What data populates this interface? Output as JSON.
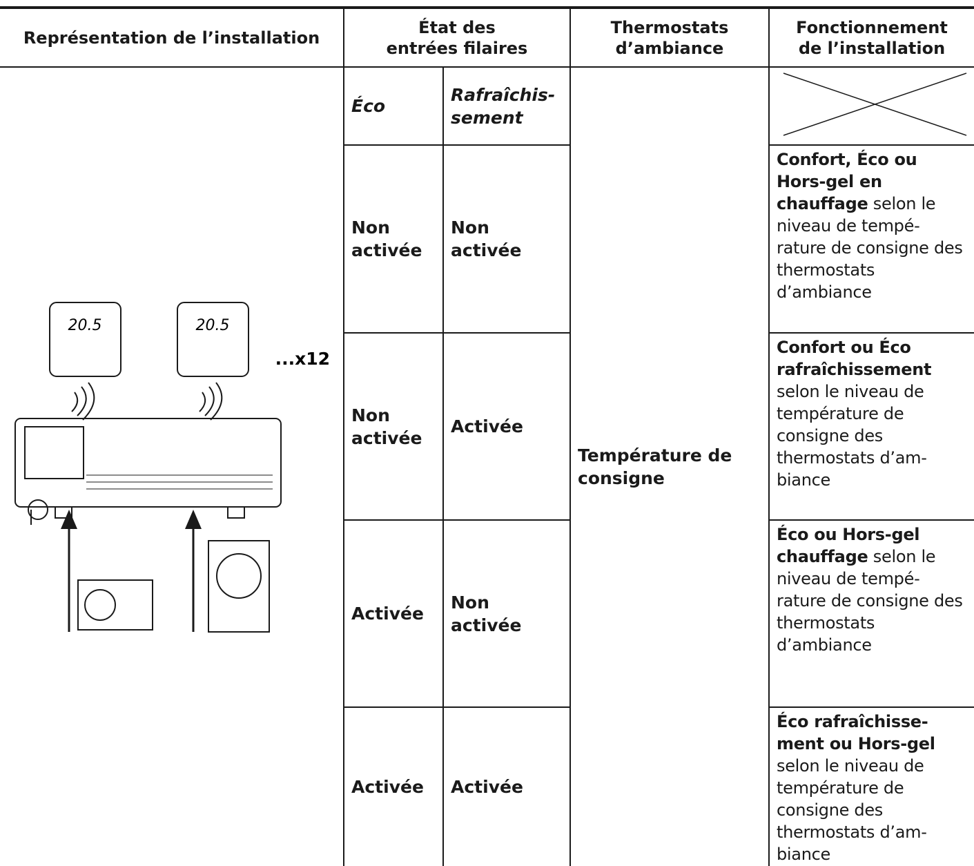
{
  "header": {
    "installation": "Représentation de l’installation",
    "inputs": "État des entrées filaires",
    "thermostats": "Thermostats d’ambiance",
    "operation": "Fonctionnement de l’installation"
  },
  "subheader": {
    "eco": "Éco",
    "cooling": "Rafraîchis-sement"
  },
  "thermostat_setting": "Température de consigne",
  "illustration": {
    "display": "20.5",
    "count": "...x12"
  },
  "rows": [
    {
      "eco": "Non activée",
      "cooling": "Non activée",
      "operation": {
        "bold": "Confort, Éco ou Hors-gel en chauffage",
        "text": "selon le niveau de tempé-rature de consigne des thermostats d’ambiance"
      }
    },
    {
      "eco": "Non activée",
      "cooling": "Activée",
      "operation": {
        "bold": "Confort ou Éco rafraîchissement",
        "text": "selon le niveau de température de consigne des thermostats d’am-biance"
      }
    },
    {
      "eco": "Activée",
      "cooling": "Non activée",
      "operation": {
        "bold": "Éco ou Hors-gel chauffage",
        "text": "selon le niveau de tempé-rature de consigne des thermostats d’ambiance"
      }
    },
    {
      "eco": "Activée",
      "cooling": "Activée",
      "operation": {
        "bold": "Éco rafraîchisse-ment ou Hors-gel",
        "text": "selon le niveau de température de consigne des thermostats d’am-biance"
      }
    }
  ]
}
